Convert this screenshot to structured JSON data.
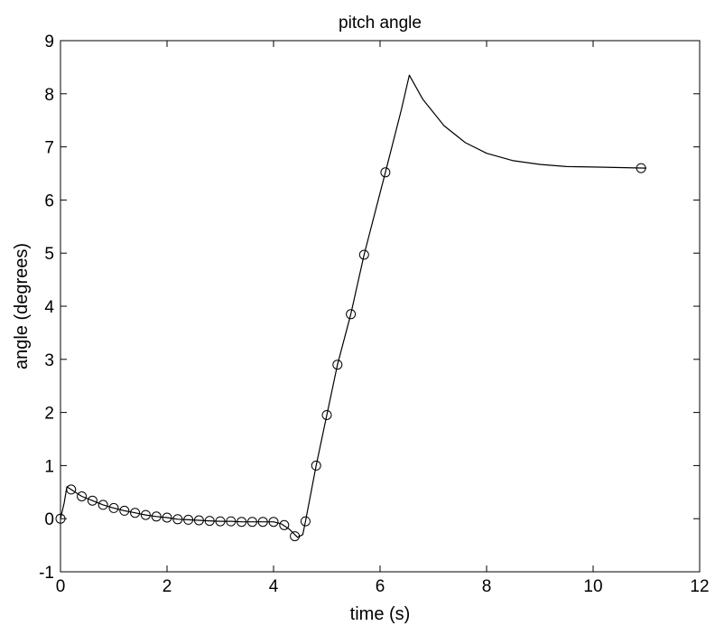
{
  "chart_data": {
    "type": "line",
    "title": "pitch angle",
    "xlabel": "time (s)",
    "ylabel": "angle (degrees)",
    "xlim": [
      0,
      12
    ],
    "ylim": [
      -1,
      9
    ],
    "x_ticks": [
      0,
      2,
      4,
      6,
      8,
      10,
      12
    ],
    "y_ticks": [
      -1,
      0,
      1,
      2,
      3,
      4,
      5,
      6,
      7,
      8,
      9
    ],
    "grid": false,
    "colors": {
      "line": "#000000",
      "marker": "#000000",
      "background": "#ffffff"
    },
    "series": [
      {
        "line_style": "solid",
        "points": [
          [
            0.0,
            0.0
          ],
          [
            0.07,
            0.3
          ],
          [
            0.12,
            0.6
          ],
          [
            0.2,
            0.55
          ],
          [
            0.4,
            0.42
          ],
          [
            0.6,
            0.34
          ],
          [
            0.8,
            0.26
          ],
          [
            1.0,
            0.2
          ],
          [
            1.2,
            0.15
          ],
          [
            1.4,
            0.11
          ],
          [
            1.6,
            0.07
          ],
          [
            1.8,
            0.04
          ],
          [
            2.0,
            0.02
          ],
          [
            2.2,
            -0.01
          ],
          [
            2.4,
            -0.02
          ],
          [
            2.6,
            -0.03
          ],
          [
            2.8,
            -0.04
          ],
          [
            3.0,
            -0.05
          ],
          [
            3.2,
            -0.05
          ],
          [
            3.4,
            -0.06
          ],
          [
            3.6,
            -0.06
          ],
          [
            3.8,
            -0.06
          ],
          [
            4.0,
            -0.06
          ],
          [
            4.15,
            -0.1
          ],
          [
            4.3,
            -0.2
          ],
          [
            4.45,
            -0.35
          ],
          [
            4.55,
            -0.3
          ],
          [
            4.6,
            -0.05
          ],
          [
            4.8,
            1.0
          ],
          [
            5.0,
            1.95
          ],
          [
            5.2,
            2.9
          ],
          [
            5.45,
            3.85
          ],
          [
            5.7,
            4.97
          ],
          [
            6.1,
            6.52
          ],
          [
            6.4,
            7.7
          ],
          [
            6.55,
            8.35
          ],
          [
            6.8,
            7.9
          ],
          [
            7.2,
            7.4
          ],
          [
            7.6,
            7.08
          ],
          [
            8.0,
            6.88
          ],
          [
            8.5,
            6.74
          ],
          [
            9.0,
            6.67
          ],
          [
            9.5,
            6.63
          ],
          [
            10.0,
            6.62
          ],
          [
            10.5,
            6.61
          ],
          [
            11.0,
            6.6
          ]
        ]
      }
    ],
    "markers": {
      "shape": "circle",
      "points": [
        [
          0.0,
          0.0
        ],
        [
          0.2,
          0.55
        ],
        [
          0.4,
          0.42
        ],
        [
          0.6,
          0.34
        ],
        [
          0.8,
          0.26
        ],
        [
          1.0,
          0.2
        ],
        [
          1.2,
          0.15
        ],
        [
          1.4,
          0.11
        ],
        [
          1.6,
          0.07
        ],
        [
          1.8,
          0.04
        ],
        [
          2.0,
          0.02
        ],
        [
          2.2,
          -0.01
        ],
        [
          2.4,
          -0.02
        ],
        [
          2.6,
          -0.03
        ],
        [
          2.8,
          -0.04
        ],
        [
          3.0,
          -0.05
        ],
        [
          3.2,
          -0.05
        ],
        [
          3.4,
          -0.06
        ],
        [
          3.6,
          -0.06
        ],
        [
          3.8,
          -0.06
        ],
        [
          4.0,
          -0.06
        ],
        [
          4.2,
          -0.12
        ],
        [
          4.4,
          -0.33
        ],
        [
          4.6,
          -0.05
        ],
        [
          4.8,
          1.0
        ],
        [
          5.0,
          1.95
        ],
        [
          5.2,
          2.9
        ],
        [
          5.45,
          3.85
        ],
        [
          5.7,
          4.97
        ],
        [
          6.1,
          6.52
        ],
        [
          10.9,
          6.6
        ]
      ]
    }
  }
}
